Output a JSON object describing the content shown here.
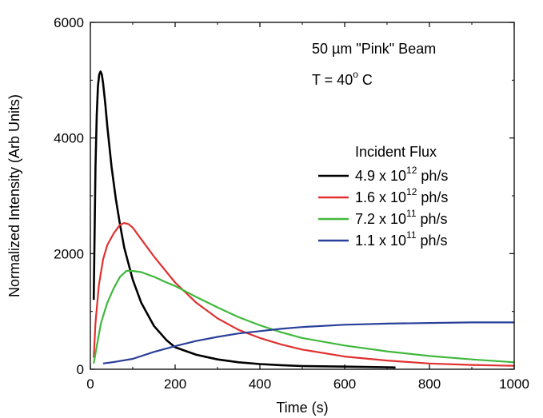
{
  "chart_data": {
    "type": "line",
    "xlabel": "Time (s)",
    "ylabel": "Normalized Intensity (Arb Units)",
    "xlim": [
      0,
      1000
    ],
    "ylim": [
      0,
      6000
    ],
    "xticks": [
      "0",
      "200",
      "400",
      "600",
      "800",
      "1000"
    ],
    "yticks": [
      "0",
      "2000",
      "4000",
      "6000"
    ],
    "annotations": [
      {
        "text": "50 µm \"Pink\" Beam"
      },
      {
        "prefix": "T = 40",
        "sup": "o",
        "suffix": " C"
      }
    ],
    "legend": {
      "title": "Incident Flux",
      "position": "right-middle"
    },
    "series": [
      {
        "name": "4.9 x 10^12 ph/s",
        "mantissa": "4.9 x 10",
        "exponent": "12",
        "unit": " ph/s",
        "color": "#000000",
        "x": [
          8,
          12,
          15,
          18,
          21,
          24,
          27,
          30,
          35,
          40,
          50,
          60,
          70,
          80,
          100,
          120,
          150,
          180,
          200,
          250,
          300,
          350,
          400,
          450,
          500,
          600,
          700,
          720
        ],
        "y": [
          1200,
          3500,
          4400,
          4900,
          5100,
          5150,
          5100,
          4950,
          4600,
          4200,
          3500,
          2950,
          2500,
          2100,
          1550,
          1150,
          750,
          500,
          380,
          250,
          170,
          120,
          90,
          70,
          55,
          45,
          35,
          30
        ]
      },
      {
        "name": "1.6 x 10^12 ph/s",
        "mantissa": "1.6 x 10",
        "exponent": "12",
        "unit": " ph/s",
        "color": "#e03030",
        "x": [
          8,
          12,
          20,
          30,
          40,
          55,
          70,
          80,
          90,
          100,
          120,
          150,
          200,
          250,
          300,
          350,
          400,
          450,
          500,
          600,
          700,
          800,
          900,
          1000
        ],
        "y": [
          200,
          800,
          1450,
          1900,
          2150,
          2350,
          2500,
          2530,
          2510,
          2450,
          2250,
          1950,
          1500,
          1150,
          880,
          680,
          540,
          430,
          340,
          220,
          150,
          100,
          75,
          60
        ]
      },
      {
        "name": "7.2 x 10^11 ph/s",
        "mantissa": "7.2 x 10",
        "exponent": "11",
        "unit": " ph/s",
        "color": "#40b83c",
        "x": [
          8,
          15,
          25,
          40,
          55,
          70,
          85,
          100,
          120,
          150,
          180,
          200,
          250,
          300,
          350,
          400,
          450,
          500,
          600,
          700,
          800,
          900,
          1000
        ],
        "y": [
          100,
          400,
          800,
          1150,
          1400,
          1600,
          1700,
          1700,
          1680,
          1600,
          1500,
          1440,
          1250,
          1070,
          900,
          760,
          640,
          540,
          410,
          310,
          230,
          170,
          120
        ]
      },
      {
        "name": "1.1 x 10^11 ph/s",
        "mantissa": "1.1 x 10",
        "exponent": "11",
        "unit": " ph/s",
        "color": "#2a3f9a",
        "x": [
          30,
          60,
          100,
          150,
          200,
          250,
          300,
          350,
          400,
          450,
          500,
          600,
          700,
          800,
          900,
          1000
        ],
        "y": [
          100,
          130,
          180,
          300,
          400,
          490,
          560,
          620,
          660,
          700,
          730,
          770,
          790,
          800,
          810,
          810
        ]
      }
    ]
  }
}
